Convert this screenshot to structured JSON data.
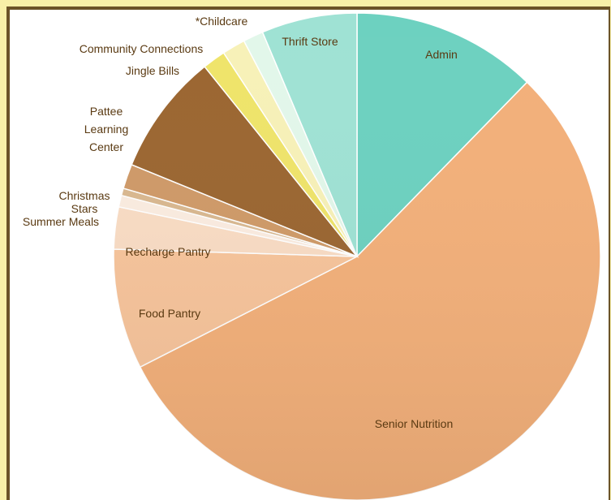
{
  "chart_data": {
    "type": "pie",
    "title": "",
    "start_angle_deg": 0,
    "direction": "clockwise",
    "slices": [
      {
        "label": "Admin",
        "value": 12.8,
        "color": "#6dd1c0"
      },
      {
        "label": "Senior Nutrition",
        "value": 57.4,
        "color": "#f3b07a"
      },
      {
        "label": "Food Pantry",
        "value": 8.3,
        "color": "#f7c49b"
      },
      {
        "label": "Recharge Pantry",
        "value": 2.9,
        "color": "#f9dcc4"
      },
      {
        "label": "Summer Meals",
        "value": 0.8,
        "color": "#fbece0"
      },
      {
        "label": "",
        "value": 0.5,
        "color": "#d9b890"
      },
      {
        "label": "Christmas Stars",
        "value": 1.7,
        "color": "#cf9a68"
      },
      {
        "label": "Pattee Learning Center",
        "value": 8.4,
        "color": "#9b6631"
      },
      {
        "label": "Jingle Bills",
        "value": 1.6,
        "color": "#efe46a"
      },
      {
        "label": "Community Connections",
        "value": 1.6,
        "color": "#f7f1b8"
      },
      {
        "label": "*Childcare",
        "value": 1.4,
        "color": "#e2f7ea"
      },
      {
        "label": "Thrift Store",
        "value": 6.6,
        "color": "#9fe2d4"
      }
    ]
  }
}
